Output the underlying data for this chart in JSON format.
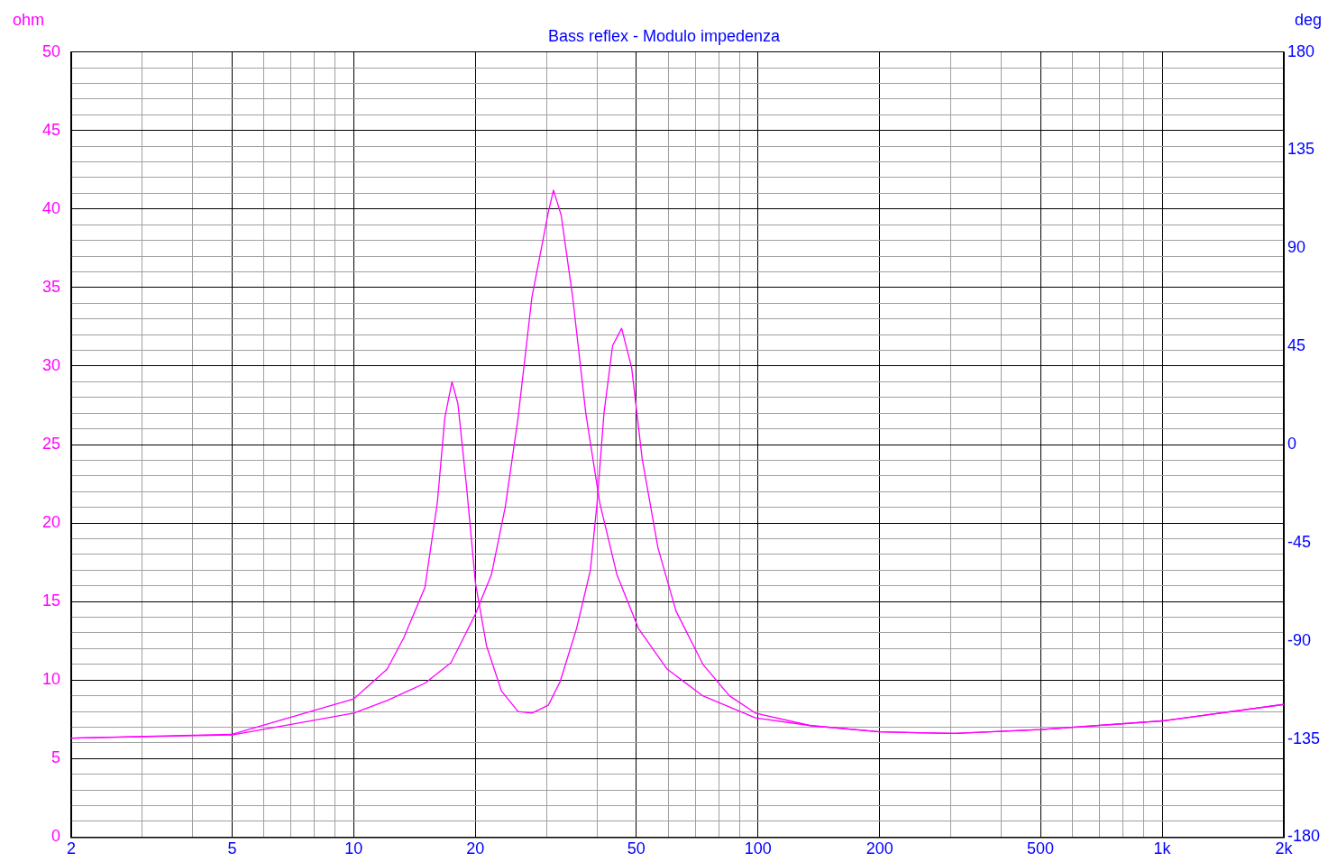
{
  "chart_data": {
    "type": "line",
    "title": "Bass reflex - Modulo impedenza",
    "ylabel": "ohm",
    "y2label": "deg",
    "log": "x",
    "grid": true,
    "legend": false,
    "marker": "none",
    "line_style": "solid",
    "xlim": [
      2,
      2000
    ],
    "ylim": [
      0,
      50
    ],
    "y2lim": [
      -180,
      180
    ],
    "xticks": [
      {
        "value": 2,
        "label": "2"
      },
      {
        "value": 3,
        "label": null
      },
      {
        "value": 4,
        "label": null
      },
      {
        "value": 5,
        "label": "5"
      },
      {
        "value": 6,
        "label": null
      },
      {
        "value": 7,
        "label": null
      },
      {
        "value": 8,
        "label": null
      },
      {
        "value": 9,
        "label": null
      },
      {
        "value": 10,
        "label": "10"
      },
      {
        "value": 20,
        "label": "20"
      },
      {
        "value": 30,
        "label": null
      },
      {
        "value": 40,
        "label": null
      },
      {
        "value": 50,
        "label": "50"
      },
      {
        "value": 60,
        "label": null
      },
      {
        "value": 70,
        "label": null
      },
      {
        "value": 80,
        "label": null
      },
      {
        "value": 90,
        "label": null
      },
      {
        "value": 100,
        "label": "100"
      },
      {
        "value": 200,
        "label": "200"
      },
      {
        "value": 300,
        "label": null
      },
      {
        "value": 400,
        "label": null
      },
      {
        "value": 500,
        "label": "500"
      },
      {
        "value": 600,
        "label": null
      },
      {
        "value": 700,
        "label": null
      },
      {
        "value": 800,
        "label": null
      },
      {
        "value": 900,
        "label": null
      },
      {
        "value": 1000,
        "label": "1k"
      },
      {
        "value": 2000,
        "label": "2k"
      }
    ],
    "yticks": [
      0,
      {
        "value": 1,
        "label": null
      },
      {
        "value": 2,
        "label": null
      },
      {
        "value": 3,
        "label": null
      },
      {
        "value": 4,
        "label": null
      },
      5,
      {
        "value": 6,
        "label": null
      },
      {
        "value": 7,
        "label": null
      },
      {
        "value": 8,
        "label": null
      },
      {
        "value": 9,
        "label": null
      },
      10,
      {
        "value": 11,
        "label": null
      },
      {
        "value": 12,
        "label": null
      },
      {
        "value": 13,
        "label": null
      },
      {
        "value": 14,
        "label": null
      },
      15,
      {
        "value": 16,
        "label": null
      },
      {
        "value": 17,
        "label": null
      },
      {
        "value": 18,
        "label": null
      },
      {
        "value": 19,
        "label": null
      },
      20,
      {
        "value": 21,
        "label": null
      },
      {
        "value": 22,
        "label": null
      },
      {
        "value": 23,
        "label": null
      },
      {
        "value": 24,
        "label": null
      },
      25,
      {
        "value": 26,
        "label": null
      },
      {
        "value": 27,
        "label": null
      },
      {
        "value": 28,
        "label": null
      },
      {
        "value": 29,
        "label": null
      },
      30,
      {
        "value": 31,
        "label": null
      },
      {
        "value": 32,
        "label": null
      },
      {
        "value": 33,
        "label": null
      },
      {
        "value": 34,
        "label": null
      },
      35,
      {
        "value": 36,
        "label": null
      },
      {
        "value": 37,
        "label": null
      },
      {
        "value": 38,
        "label": null
      },
      {
        "value": 39,
        "label": null
      },
      40,
      {
        "value": 41,
        "label": null
      },
      {
        "value": 42,
        "label": null
      },
      {
        "value": 43,
        "label": null
      },
      {
        "value": 44,
        "label": null
      },
      45,
      {
        "value": 46,
        "label": null
      },
      {
        "value": 47,
        "label": null
      },
      {
        "value": 48,
        "label": null
      },
      {
        "value": 49,
        "label": null
      },
      50
    ],
    "y2ticks": [
      -180,
      -135,
      -90,
      -45,
      0,
      45,
      90,
      135,
      180
    ],
    "series": [
      {
        "color": "#ff00ff",
        "x": [
          2,
          5,
          10,
          12.1,
          13.3,
          15,
          16.1,
          16.8,
          17.5,
          18.1,
          19,
          20,
          21.3,
          23.2,
          25.5,
          27.6,
          30.3,
          32.4,
          35.6,
          38.5,
          40,
          41.6,
          43.7,
          46,
          48.7,
          51.7,
          56.6,
          62.7,
          73.1,
          85,
          98.5,
          135,
          200,
          307,
          500,
          1000,
          2000
        ],
        "values": [
          6.3,
          6.55,
          8.8,
          10.7,
          12.7,
          15.9,
          21.3,
          26.7,
          29.0,
          27.6,
          22.4,
          16.2,
          12.2,
          9.3,
          8.0,
          7.9,
          8.4,
          9.9,
          13.3,
          17.0,
          21.3,
          27.0,
          31.3,
          32.4,
          29.9,
          24.1,
          18.4,
          14.4,
          11.0,
          9.0,
          7.9,
          7.1,
          6.7,
          6.6,
          6.85,
          7.4,
          8.45
        ]
      },
      {
        "color": "#ff00ff",
        "x": [
          2,
          5,
          10,
          12.1,
          15,
          17.4,
          20,
          21.9,
          23.7,
          25.5,
          27.6,
          30.3,
          31.2,
          32.6,
          34.8,
          37.5,
          40.6,
          44.8,
          50.6,
          59.6,
          73,
          98.5,
          135,
          200,
          307,
          500,
          1000,
          2000
        ],
        "values": [
          6.3,
          6.5,
          7.9,
          8.7,
          9.8,
          11.1,
          14.2,
          16.7,
          21.0,
          26.7,
          34.4,
          39.8,
          41.2,
          39.6,
          34.4,
          27.0,
          21.3,
          16.7,
          13.3,
          10.7,
          9.0,
          7.6,
          7.1,
          6.7,
          6.6,
          6.85,
          7.4,
          8.45
        ]
      }
    ]
  }
}
